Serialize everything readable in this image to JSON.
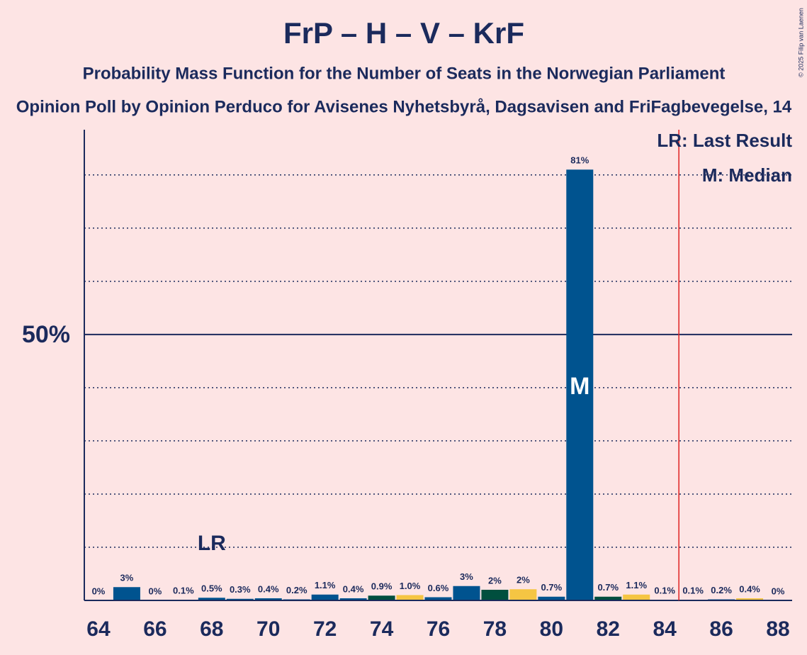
{
  "chart_data": {
    "type": "bar",
    "title": "FrP – H – V – KrF",
    "subtitle": "Probability Mass Function for the Number of Seats in the Norwegian Parliament",
    "subtitle2": "Opinion Poll by Opinion Perduco for Avisenes Nyhetsbyrå, Dagsavisen and FriFagbevegelse, 14",
    "copyright": "© 2025 Filip van Laenen",
    "x": [
      64,
      65,
      66,
      67,
      68,
      69,
      70,
      71,
      72,
      73,
      74,
      75,
      76,
      77,
      78,
      79,
      80,
      81,
      82,
      83,
      84,
      85,
      86,
      87,
      88
    ],
    "values": [
      0,
      2.5,
      0,
      0.1,
      0.5,
      0.3,
      0.4,
      0.2,
      1.1,
      0.4,
      0.9,
      1.0,
      0.6,
      2.7,
      2.0,
      2.1,
      0.7,
      81,
      0.7,
      1.1,
      0.1,
      0.1,
      0.2,
      0.4,
      0
    ],
    "value_labels": [
      "0%",
      "3%",
      "0%",
      "0.1%",
      "0.5%",
      "0.3%",
      "0.4%",
      "0.2%",
      "1.1%",
      "0.4%",
      "0.9%",
      "1.0%",
      "0.6%",
      "3%",
      "2%",
      "2%",
      "0.7%",
      "81%",
      "0.7%",
      "1.1%",
      "0.1%",
      "0.1%",
      "0.2%",
      "0.4%",
      "0%"
    ],
    "colors": [
      "#00538f",
      "#00538f",
      "#00538f",
      "#00538f",
      "#00538f",
      "#00538f",
      "#00538f",
      "#00538f",
      "#00538f",
      "#00538f",
      "#004f3e",
      "#f5c543",
      "#00538f",
      "#00538f",
      "#004f3e",
      "#f5c543",
      "#00538f",
      "#00538f",
      "#004f3e",
      "#f5c543",
      "#00538f",
      "#00538f",
      "#00538f",
      "#f5c543",
      "#00538f"
    ],
    "xlim": [
      63.5,
      88.5
    ],
    "ylim": [
      0,
      88.5
    ],
    "xticks": [
      64,
      66,
      68,
      70,
      72,
      74,
      76,
      78,
      80,
      82,
      84,
      86,
      88
    ],
    "yticks": [
      {
        "value": 50,
        "label": "50%"
      }
    ],
    "minor_yticks": [
      10,
      20,
      30,
      40,
      60,
      70,
      80
    ],
    "last_result": {
      "x": 68,
      "label": "LR"
    },
    "last_result_line": 84.5,
    "median": {
      "x": 81,
      "label": "M"
    },
    "legend": [
      "LR: Last Result",
      "M: Median"
    ]
  }
}
